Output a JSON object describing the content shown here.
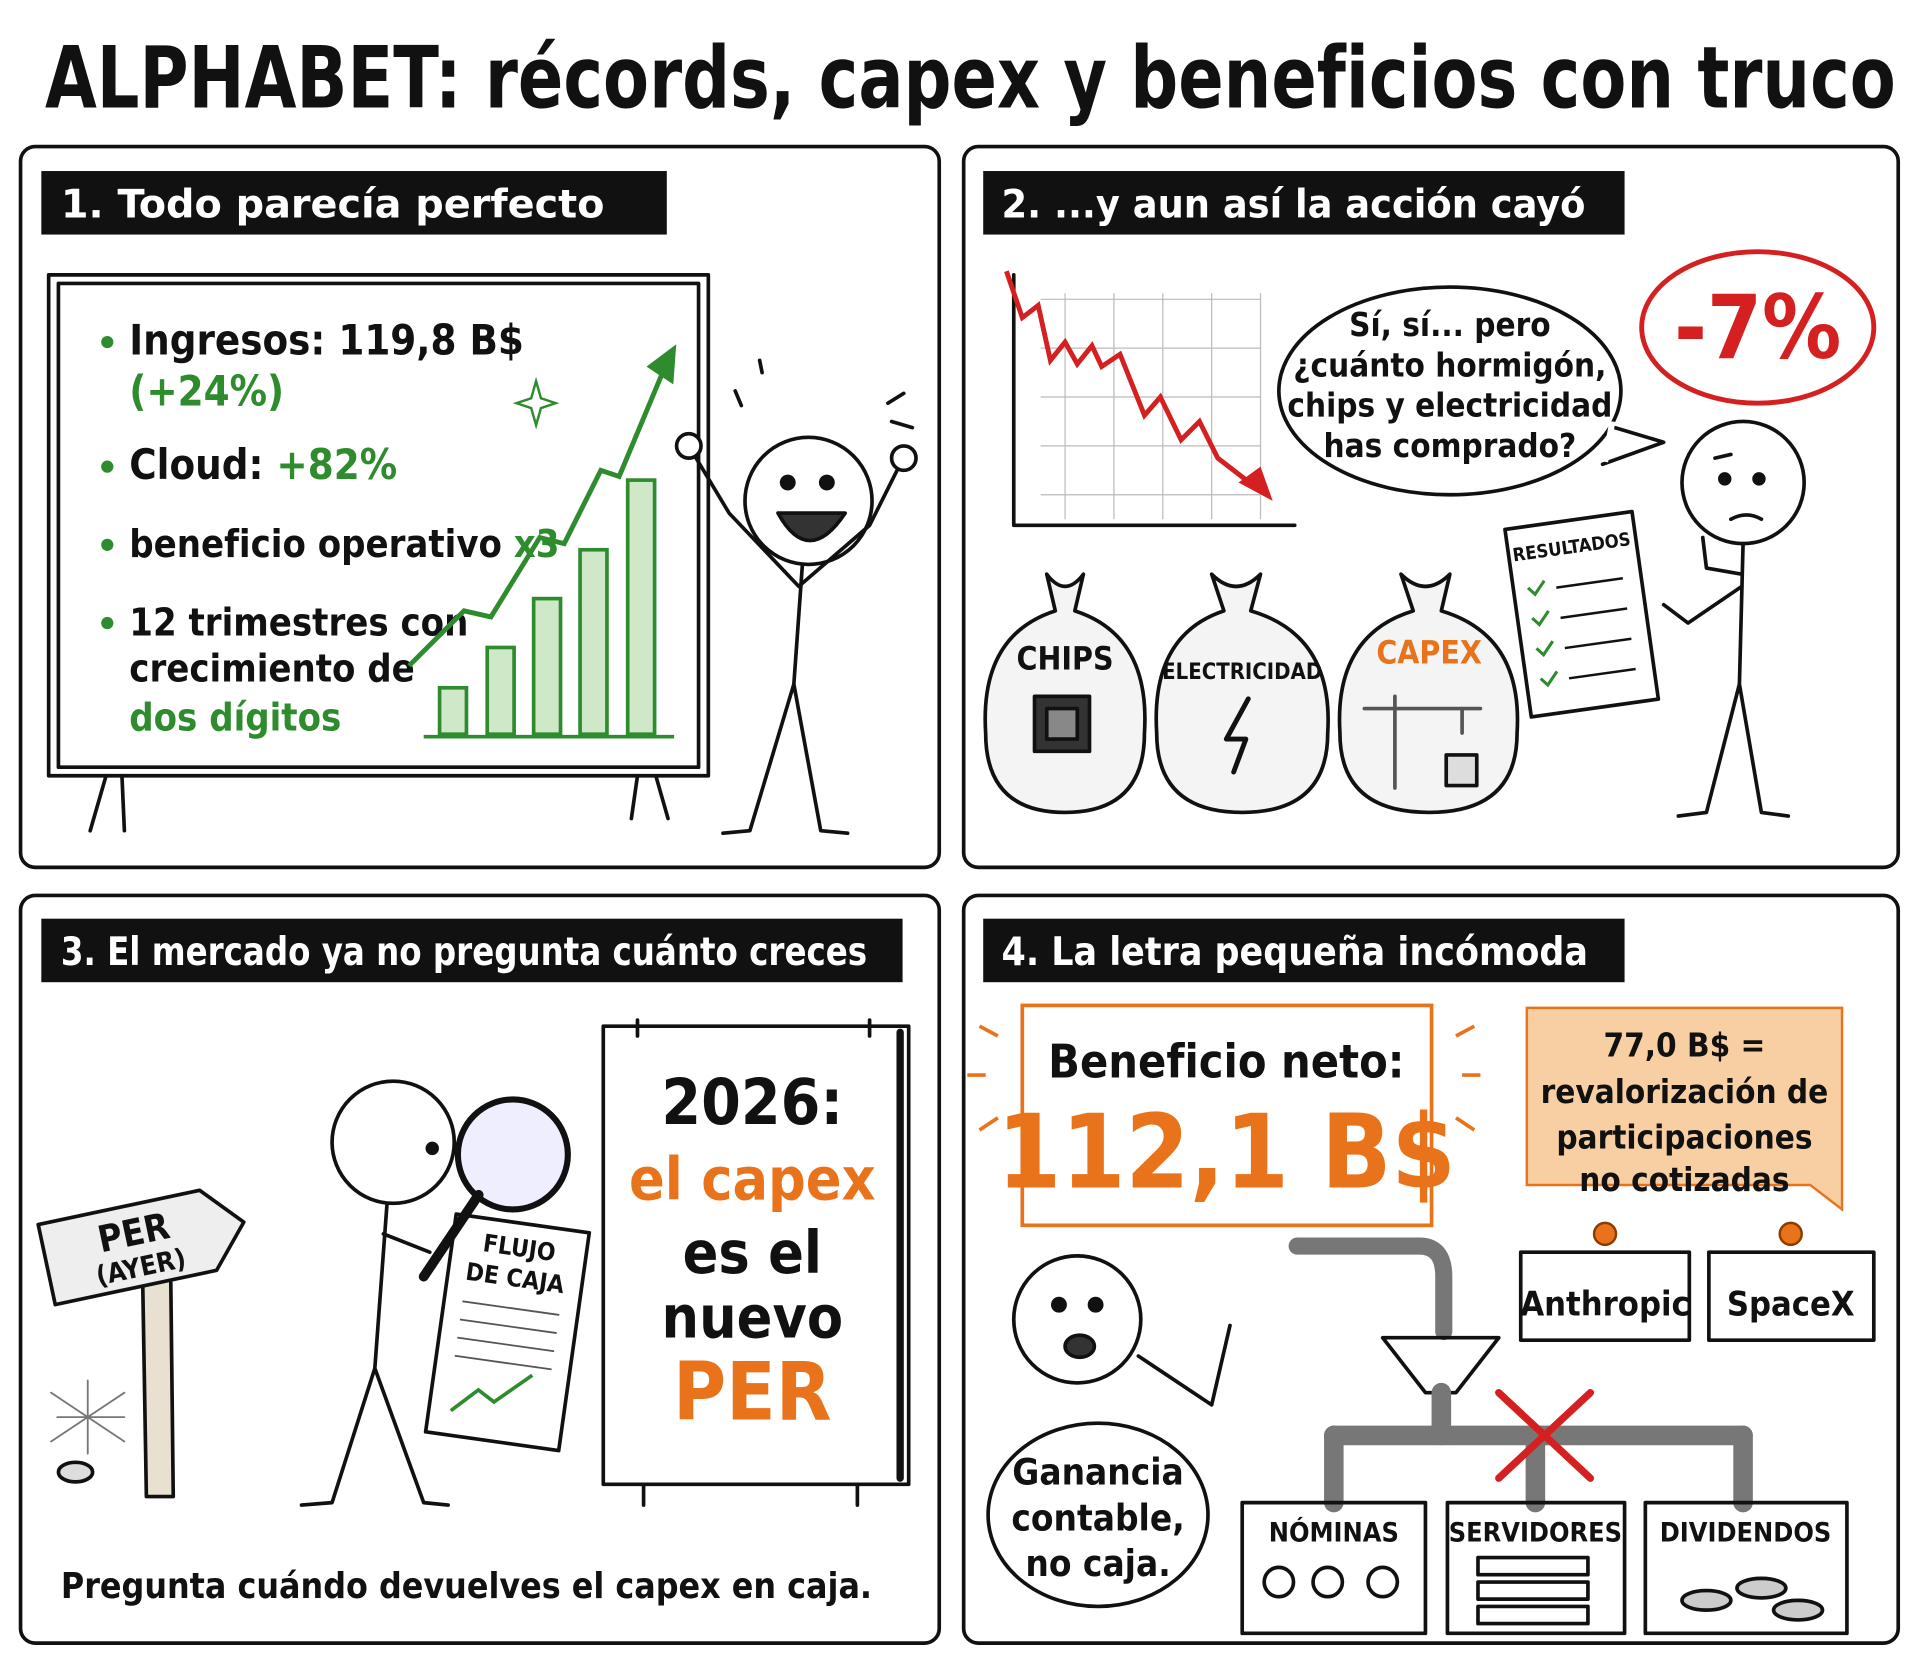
{
  "title": "ALPHABET: récords, capex y beneficios con truco",
  "panel1": {
    "heading": "1. Todo parecía perfecto",
    "revenue": "Ingresos: 119,8 B$",
    "revenue_growth": "(+24%)",
    "cloud_label": "Cloud:",
    "cloud_growth": "+82%",
    "operating_label": "beneficio operativo",
    "operating_multiple": "x3",
    "streak_lines": [
      "12 trimestres con",
      "crecimiento de"
    ],
    "streak_highlight": "dos dígitos"
  },
  "panel2": {
    "heading": "2. ...y aun así la acción cayó",
    "speech": [
      "Sí, sí... pero",
      "¿cuánto hormigón,",
      "chips y electricidad",
      "has comprado?"
    ],
    "drop": "-7%",
    "sacks": [
      "CHIPS",
      "ELECTRICIDAD",
      "CAPEX"
    ],
    "paper": "RESULTADOS"
  },
  "panel3": {
    "heading": "3. El mercado ya no pregunta cuánto creces",
    "sign": [
      "PER",
      "(AYER)"
    ],
    "document": [
      "FLUJO",
      "DE CAJA"
    ],
    "billboard": [
      "2026:",
      "el capex",
      "es el",
      "nuevo",
      "PER"
    ],
    "caption": "Pregunta cuándo devuelves el capex en caja."
  },
  "panel4": {
    "heading": "4. La letra pequeña incómoda",
    "net_label": "Beneficio neto:",
    "net_value": "112,1 B$",
    "note": [
      "77,0 B$ =",
      "revalorización de",
      "participaciones",
      "no cotizadas"
    ],
    "stakes": [
      "Anthropic",
      "SpaceX"
    ],
    "speech": [
      "Ganancia",
      "contable,",
      "no caja."
    ],
    "outlets": [
      "NÓMINAS",
      "SERVIDORES",
      "DIVIDENDOS"
    ]
  }
}
